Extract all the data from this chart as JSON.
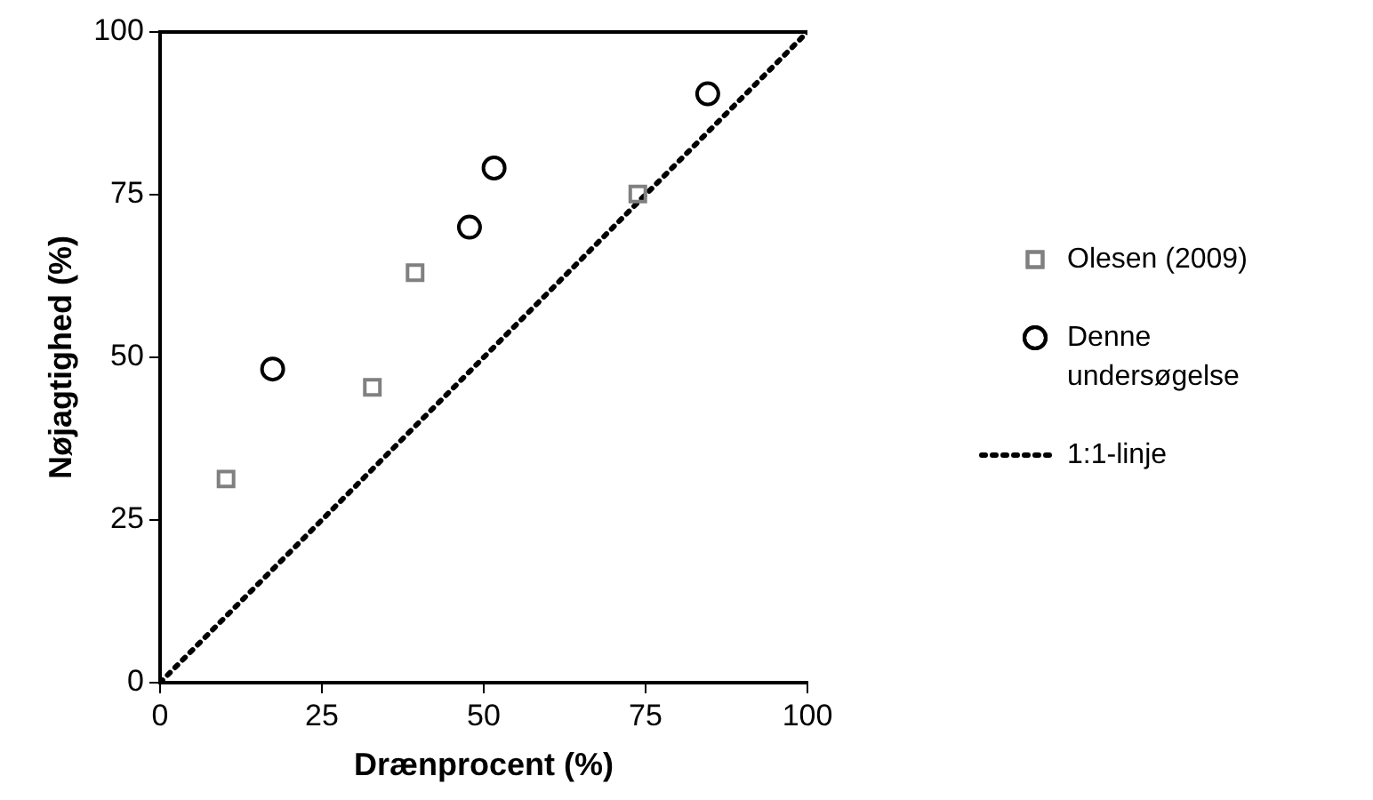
{
  "chart_data": {
    "type": "scatter",
    "xlabel": "Drænprocent (%)",
    "ylabel": "Nøjagtighed (%)",
    "xlim": [
      0,
      100
    ],
    "ylim": [
      0,
      100
    ],
    "xticks": [
      0,
      25,
      50,
      75,
      100
    ],
    "yticks": [
      0,
      25,
      50,
      75,
      100
    ],
    "grid": false,
    "legend": "right",
    "series": [
      {
        "name": "Olesen (2009)",
        "type": "scatter",
        "marker": "square",
        "color": "#808080",
        "x": [
          10.2,
          32.8,
          39.4,
          73.8
        ],
        "values": [
          31.3,
          45.4,
          63.0,
          75.1
        ]
      },
      {
        "name": "Denne undersøgelse",
        "type": "scatter",
        "marker": "circle",
        "color": "#000000",
        "x": [
          17.4,
          47.8,
          51.6,
          84.6
        ],
        "values": [
          48.2,
          70.0,
          79.1,
          90.5
        ]
      },
      {
        "name": "1:1-linje",
        "type": "line",
        "marker": "none",
        "line_style": "dotted",
        "color": "#000000",
        "x": [
          0,
          100
        ],
        "values": [
          0,
          100
        ]
      }
    ]
  }
}
